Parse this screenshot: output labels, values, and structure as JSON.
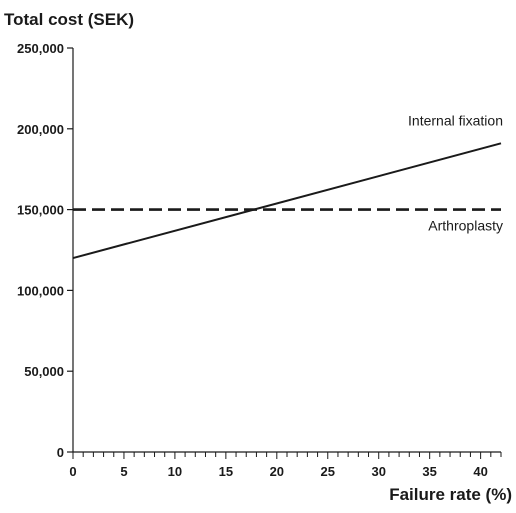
{
  "chart_data": {
    "type": "line",
    "title": "",
    "ylabel": "Total cost (SEK)",
    "xlabel": "Failure rate (%)",
    "xlim": [
      0,
      42
    ],
    "ylim": [
      0,
      250000
    ],
    "xticks": [
      0,
      5,
      10,
      15,
      20,
      25,
      30,
      35,
      40
    ],
    "xtick_labels": [
      "0",
      "5",
      "10",
      "15",
      "20",
      "25",
      "30",
      "35",
      "40"
    ],
    "xminor_step": 1,
    "yticks": [
      0,
      50000,
      100000,
      150000,
      200000,
      250000
    ],
    "ytick_labels": [
      "0",
      "50,000",
      "100,000",
      "150,000",
      "200,000",
      "250,000"
    ],
    "grid": false,
    "legend": "none",
    "series": [
      {
        "name": "Internal fixation",
        "style": "solid",
        "color": "#1a1a1a",
        "points": [
          [
            0,
            120000
          ],
          [
            42,
            191000
          ]
        ]
      },
      {
        "name": "Arthroplasty",
        "style": "dashed",
        "color": "#1a1a1a",
        "points": [
          [
            0,
            150000
          ],
          [
            42,
            150000
          ]
        ]
      }
    ]
  }
}
